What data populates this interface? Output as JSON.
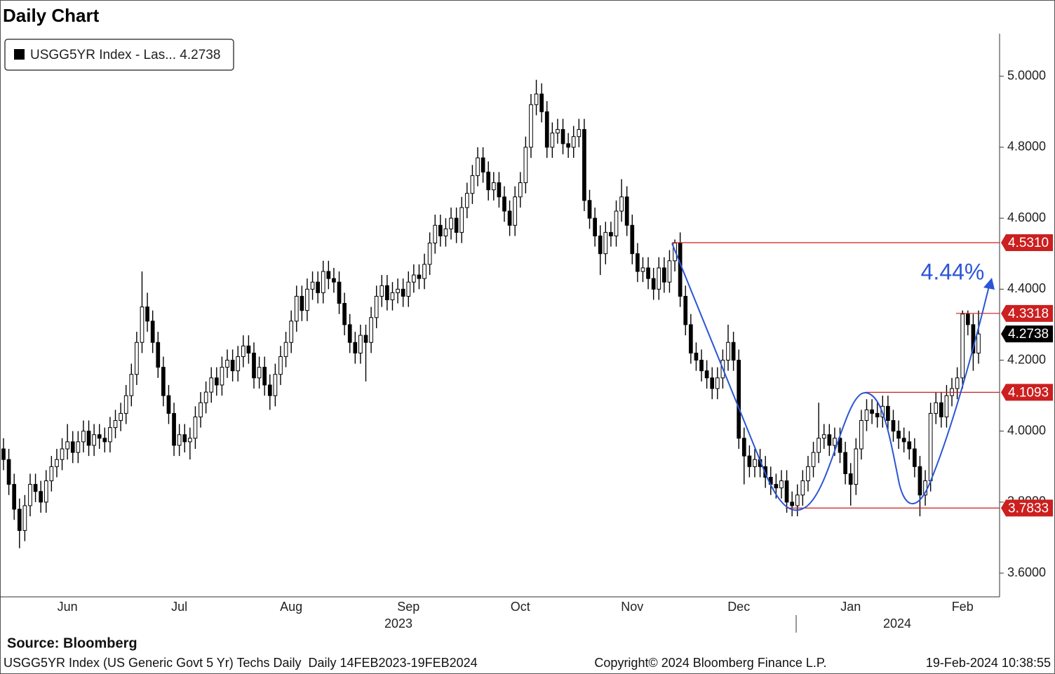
{
  "chart_data": {
    "type": "candlestick",
    "title": "Daily Chart",
    "legend": "USGG5YR Index - Las... 4.2738",
    "color": "#000000",
    "ylim": [
      3.535,
      5.12
    ],
    "yticks": [
      {
        "value": 3.6,
        "label": "3.6000"
      },
      {
        "value": 3.8,
        "label": "3.8000"
      },
      {
        "value": 4.0,
        "label": "4.0000"
      },
      {
        "value": 4.2,
        "label": "4.2000"
      },
      {
        "value": 4.4,
        "label": "4.4000"
      },
      {
        "value": 4.6,
        "label": "4.6000"
      },
      {
        "value": 4.8,
        "label": "4.8000"
      },
      {
        "value": 5.0,
        "label": "5.0000"
      }
    ],
    "year_labels": [
      "2023",
      "2024"
    ],
    "levels": [
      {
        "value": 4.531,
        "label": "4.5310"
      },
      {
        "value": 4.3318,
        "label": "4.3318"
      },
      {
        "value": 4.1093,
        "label": "4.1093"
      },
      {
        "value": 3.7833,
        "label": "3.7833"
      }
    ],
    "level_color": "#cc1f1f",
    "last_value": {
      "value": 4.2738,
      "label": "4.2738"
    },
    "annotation": "4.44%",
    "annotation_color": "#2b55d6",
    "source": "Source: Bloomberg",
    "footer_left": "USGG5YR Index (US Generic Govt 5 Yr) Techs Daily  Daily 14FEB2023-19FEB2024",
    "footer_center": "Copyright© 2024 Bloomberg Finance L.P.",
    "footer_right": "19-Feb-2024 10:38:55",
    "categories": [
      null,
      null,
      null,
      null,
      null,
      null,
      null,
      null,
      null,
      null,
      null,
      null,
      "Jun",
      null,
      null,
      null,
      null,
      null,
      null,
      null,
      null,
      null,
      null,
      null,
      null,
      null,
      null,
      null,
      null,
      null,
      null,
      null,
      null,
      "Jul",
      null,
      null,
      null,
      null,
      null,
      null,
      null,
      null,
      null,
      null,
      null,
      null,
      null,
      null,
      null,
      null,
      null,
      null,
      null,
      null,
      "Aug",
      null,
      null,
      null,
      null,
      null,
      null,
      null,
      null,
      null,
      null,
      null,
      null,
      null,
      null,
      null,
      null,
      null,
      null,
      null,
      null,
      null,
      "Sep",
      null,
      null,
      null,
      null,
      null,
      null,
      null,
      null,
      null,
      null,
      null,
      null,
      null,
      null,
      null,
      null,
      null,
      null,
      null,
      null,
      "Oct",
      null,
      null,
      null,
      null,
      null,
      null,
      null,
      null,
      null,
      null,
      null,
      null,
      null,
      null,
      null,
      null,
      null,
      null,
      null,
      null,
      "Nov",
      null,
      null,
      null,
      null,
      null,
      null,
      null,
      null,
      null,
      null,
      null,
      null,
      null,
      null,
      null,
      null,
      null,
      null,
      null,
      "Dec",
      null,
      null,
      null,
      null,
      null,
      null,
      null,
      null,
      null,
      null,
      null,
      null,
      null,
      null,
      null,
      null,
      null,
      null,
      null,
      null,
      "Jan",
      null,
      null,
      null,
      null,
      null,
      null,
      null,
      null,
      null,
      null,
      null,
      null,
      null,
      null,
      null,
      null,
      null,
      null,
      null,
      null,
      "Feb",
      null,
      null,
      null
    ],
    "ohlc": [
      [
        3.95,
        3.98,
        3.89,
        3.92
      ],
      [
        3.92,
        3.95,
        3.82,
        3.85
      ],
      [
        3.85,
        3.88,
        3.75,
        3.78
      ],
      [
        3.78,
        3.81,
        3.67,
        3.72
      ],
      [
        3.72,
        3.82,
        3.69,
        3.79
      ],
      [
        3.79,
        3.88,
        3.76,
        3.85
      ],
      [
        3.85,
        3.88,
        3.8,
        3.83
      ],
      [
        3.83,
        3.86,
        3.77,
        3.8
      ],
      [
        3.8,
        3.89,
        3.77,
        3.86
      ],
      [
        3.86,
        3.93,
        3.83,
        3.9
      ],
      [
        3.9,
        3.95,
        3.87,
        3.92
      ],
      [
        3.92,
        3.98,
        3.89,
        3.95
      ],
      [
        3.95,
        4.02,
        3.92,
        3.97
      ],
      [
        3.97,
        4.0,
        3.91,
        3.94
      ],
      [
        3.94,
        4.0,
        3.91,
        3.97
      ],
      [
        3.97,
        4.03,
        3.94,
        4.0
      ],
      [
        4.0,
        4.03,
        3.93,
        3.96
      ],
      [
        3.96,
        4.02,
        3.93,
        3.99
      ],
      [
        3.99,
        4.02,
        3.95,
        3.98
      ],
      [
        3.98,
        4.01,
        3.94,
        3.97
      ],
      [
        3.97,
        4.04,
        3.94,
        4.01
      ],
      [
        4.01,
        4.06,
        3.98,
        4.03
      ],
      [
        4.03,
        4.08,
        4.0,
        4.05
      ],
      [
        4.05,
        4.13,
        4.02,
        4.1
      ],
      [
        4.1,
        4.19,
        4.07,
        4.16
      ],
      [
        4.16,
        4.28,
        4.13,
        4.25
      ],
      [
        4.25,
        4.45,
        4.22,
        4.35
      ],
      [
        4.35,
        4.39,
        4.28,
        4.31
      ],
      [
        4.31,
        4.34,
        4.22,
        4.25
      ],
      [
        4.25,
        4.28,
        4.15,
        4.18
      ],
      [
        4.18,
        4.21,
        4.07,
        4.1
      ],
      [
        4.1,
        4.13,
        4.02,
        4.05
      ],
      [
        4.05,
        4.08,
        3.93,
        3.96
      ],
      [
        3.96,
        4.02,
        3.93,
        3.99
      ],
      [
        3.99,
        4.02,
        3.94,
        3.97
      ],
      [
        3.97,
        4.01,
        3.92,
        3.98
      ],
      [
        3.98,
        4.07,
        3.95,
        4.04
      ],
      [
        4.04,
        4.11,
        4.01,
        4.08
      ],
      [
        4.08,
        4.14,
        4.05,
        4.11
      ],
      [
        4.11,
        4.18,
        4.08,
        4.15
      ],
      [
        4.15,
        4.18,
        4.1,
        4.13
      ],
      [
        4.13,
        4.21,
        4.1,
        4.18
      ],
      [
        4.18,
        4.23,
        4.15,
        4.2
      ],
      [
        4.2,
        4.23,
        4.14,
        4.17
      ],
      [
        4.17,
        4.24,
        4.14,
        4.21
      ],
      [
        4.21,
        4.27,
        4.18,
        4.24
      ],
      [
        4.24,
        4.27,
        4.19,
        4.22
      ],
      [
        4.22,
        4.25,
        4.12,
        4.15
      ],
      [
        4.15,
        4.21,
        4.12,
        4.18
      ],
      [
        4.18,
        4.21,
        4.1,
        4.13
      ],
      [
        4.13,
        4.16,
        4.06,
        4.1
      ],
      [
        4.1,
        4.19,
        4.07,
        4.16
      ],
      [
        4.16,
        4.24,
        4.13,
        4.21
      ],
      [
        4.21,
        4.28,
        4.18,
        4.25
      ],
      [
        4.25,
        4.34,
        4.22,
        4.31
      ],
      [
        4.31,
        4.41,
        4.28,
        4.38
      ],
      [
        4.38,
        4.41,
        4.31,
        4.34
      ],
      [
        4.34,
        4.43,
        4.31,
        4.4
      ],
      [
        4.4,
        4.45,
        4.37,
        4.42
      ],
      [
        4.42,
        4.45,
        4.36,
        4.39
      ],
      [
        4.39,
        4.48,
        4.36,
        4.45
      ],
      [
        4.45,
        4.48,
        4.4,
        4.43
      ],
      [
        4.43,
        4.46,
        4.39,
        4.42
      ],
      [
        4.42,
        4.45,
        4.33,
        4.36
      ],
      [
        4.36,
        4.39,
        4.27,
        4.3
      ],
      [
        4.3,
        4.33,
        4.22,
        4.25
      ],
      [
        4.25,
        4.28,
        4.19,
        4.22
      ],
      [
        4.22,
        4.3,
        4.19,
        4.27
      ],
      [
        4.27,
        4.3,
        4.14,
        4.25
      ],
      [
        4.25,
        4.35,
        4.22,
        4.32
      ],
      [
        4.32,
        4.41,
        4.29,
        4.38
      ],
      [
        4.38,
        4.44,
        4.35,
        4.41
      ],
      [
        4.41,
        4.44,
        4.34,
        4.37
      ],
      [
        4.37,
        4.42,
        4.34,
        4.39
      ],
      [
        4.39,
        4.43,
        4.36,
        4.4
      ],
      [
        4.4,
        4.43,
        4.35,
        4.38
      ],
      [
        4.38,
        4.45,
        4.35,
        4.42
      ],
      [
        4.42,
        4.47,
        4.39,
        4.44
      ],
      [
        4.44,
        4.47,
        4.4,
        4.43
      ],
      [
        4.43,
        4.5,
        4.4,
        4.47
      ],
      [
        4.47,
        4.56,
        4.44,
        4.53
      ],
      [
        4.53,
        4.61,
        4.5,
        4.58
      ],
      [
        4.58,
        4.61,
        4.52,
        4.55
      ],
      [
        4.55,
        4.6,
        4.52,
        4.57
      ],
      [
        4.57,
        4.63,
        4.54,
        4.6
      ],
      [
        4.6,
        4.63,
        4.53,
        4.56
      ],
      [
        4.56,
        4.66,
        4.53,
        4.63
      ],
      [
        4.63,
        4.7,
        4.6,
        4.67
      ],
      [
        4.67,
        4.75,
        4.64,
        4.72
      ],
      [
        4.72,
        4.8,
        4.69,
        4.77
      ],
      [
        4.77,
        4.8,
        4.7,
        4.73
      ],
      [
        4.73,
        4.76,
        4.65,
        4.68
      ],
      [
        4.68,
        4.73,
        4.65,
        4.7
      ],
      [
        4.7,
        4.73,
        4.63,
        4.66
      ],
      [
        4.66,
        4.69,
        4.59,
        4.62
      ],
      [
        4.62,
        4.65,
        4.55,
        4.58
      ],
      [
        4.58,
        4.69,
        4.55,
        4.66
      ],
      [
        4.66,
        4.73,
        4.63,
        4.7
      ],
      [
        4.7,
        4.83,
        4.67,
        4.8
      ],
      [
        4.8,
        4.95,
        4.77,
        4.92
      ],
      [
        4.92,
        4.99,
        4.89,
        4.95
      ],
      [
        4.95,
        4.98,
        4.87,
        4.9
      ],
      [
        4.9,
        4.93,
        4.77,
        4.8
      ],
      [
        4.8,
        4.87,
        4.77,
        4.84
      ],
      [
        4.84,
        4.88,
        4.81,
        4.85
      ],
      [
        4.85,
        4.88,
        4.78,
        4.81
      ],
      [
        4.81,
        4.84,
        4.77,
        4.8
      ],
      [
        4.8,
        4.86,
        4.77,
        4.83
      ],
      [
        4.83,
        4.88,
        4.8,
        4.85
      ],
      [
        4.85,
        4.88,
        4.62,
        4.65
      ],
      [
        4.65,
        4.68,
        4.57,
        4.6
      ],
      [
        4.6,
        4.63,
        4.52,
        4.55
      ],
      [
        4.55,
        4.58,
        4.44,
        4.5
      ],
      [
        4.5,
        4.59,
        4.47,
        4.56
      ],
      [
        4.56,
        4.59,
        4.52,
        4.55
      ],
      [
        4.55,
        4.65,
        4.52,
        4.62
      ],
      [
        4.62,
        4.71,
        4.59,
        4.66
      ],
      [
        4.66,
        4.69,
        4.55,
        4.58
      ],
      [
        4.58,
        4.61,
        4.47,
        4.5
      ],
      [
        4.5,
        4.53,
        4.42,
        4.45
      ],
      [
        4.45,
        4.49,
        4.42,
        4.46
      ],
      [
        4.46,
        4.49,
        4.4,
        4.43
      ],
      [
        4.43,
        4.46,
        4.37,
        4.4
      ],
      [
        4.4,
        4.49,
        4.37,
        4.46
      ],
      [
        4.46,
        4.49,
        4.39,
        4.42
      ],
      [
        4.42,
        4.51,
        4.39,
        4.48
      ],
      [
        4.48,
        4.54,
        4.45,
        4.53
      ],
      [
        4.53,
        4.56,
        4.35,
        4.38
      ],
      [
        4.38,
        4.41,
        4.27,
        4.3
      ],
      [
        4.3,
        4.33,
        4.19,
        4.22
      ],
      [
        4.22,
        4.25,
        4.17,
        4.2
      ],
      [
        4.2,
        4.23,
        4.14,
        4.17
      ],
      [
        4.17,
        4.2,
        4.12,
        4.15
      ],
      [
        4.15,
        4.18,
        4.09,
        4.12
      ],
      [
        4.12,
        4.18,
        4.09,
        4.15
      ],
      [
        4.15,
        4.23,
        4.12,
        4.2
      ],
      [
        4.2,
        4.3,
        4.17,
        4.25
      ],
      [
        4.25,
        4.28,
        4.17,
        4.2
      ],
      [
        4.2,
        4.23,
        3.95,
        3.98
      ],
      [
        3.98,
        4.01,
        3.85,
        3.93
      ],
      [
        3.93,
        3.96,
        3.87,
        3.9
      ],
      [
        3.9,
        3.95,
        3.87,
        3.92
      ],
      [
        3.92,
        3.95,
        3.87,
        3.9
      ],
      [
        3.9,
        3.93,
        3.84,
        3.87
      ],
      [
        3.87,
        3.9,
        3.82,
        3.85
      ],
      [
        3.85,
        3.88,
        3.81,
        3.84
      ],
      [
        3.84,
        3.89,
        3.81,
        3.86
      ],
      [
        3.86,
        3.89,
        3.77,
        3.8
      ],
      [
        3.8,
        3.83,
        3.76,
        3.79
      ],
      [
        3.79,
        3.85,
        3.76,
        3.82
      ],
      [
        3.82,
        3.89,
        3.79,
        3.86
      ],
      [
        3.86,
        3.93,
        3.83,
        3.9
      ],
      [
        3.9,
        3.97,
        3.87,
        3.94
      ],
      [
        3.94,
        4.08,
        3.91,
        3.98
      ],
      [
        3.98,
        4.02,
        3.95,
        3.99
      ],
      [
        3.99,
        4.02,
        3.93,
        3.96
      ],
      [
        3.96,
        4.01,
        3.93,
        3.98
      ],
      [
        3.98,
        4.01,
        3.91,
        3.94
      ],
      [
        3.94,
        3.97,
        3.85,
        3.88
      ],
      [
        3.88,
        3.91,
        3.79,
        3.85
      ],
      [
        3.85,
        3.98,
        3.82,
        3.95
      ],
      [
        3.95,
        4.06,
        3.92,
        4.03
      ],
      [
        4.03,
        4.09,
        4.0,
        4.06
      ],
      [
        4.06,
        4.09,
        4.02,
        4.05
      ],
      [
        4.05,
        4.08,
        4.01,
        4.04
      ],
      [
        4.04,
        4.1,
        4.01,
        4.07
      ],
      [
        4.07,
        4.1,
        4.0,
        4.03
      ],
      [
        4.03,
        4.06,
        3.97,
        4.0
      ],
      [
        4.0,
        4.03,
        3.95,
        3.98
      ],
      [
        3.98,
        4.01,
        3.94,
        3.97
      ],
      [
        3.97,
        4.0,
        3.92,
        3.95
      ],
      [
        3.95,
        3.98,
        3.87,
        3.9
      ],
      [
        3.9,
        3.93,
        3.76,
        3.82
      ],
      [
        3.82,
        3.89,
        3.79,
        3.86
      ],
      [
        3.86,
        4.08,
        3.83,
        4.05
      ],
      [
        4.05,
        4.11,
        4.02,
        4.08
      ],
      [
        4.08,
        4.11,
        4.01,
        4.04
      ],
      [
        4.04,
        4.13,
        4.01,
        4.1
      ],
      [
        4.1,
        4.15,
        4.07,
        4.12
      ],
      [
        4.12,
        4.18,
        4.09,
        4.15
      ],
      [
        4.15,
        4.34,
        4.12,
        4.33
      ],
      [
        4.33,
        4.34,
        4.27,
        4.3
      ],
      [
        4.3,
        4.33,
        4.17,
        4.22
      ],
      [
        4.22,
        4.34,
        4.19,
        4.2738
      ]
    ]
  }
}
